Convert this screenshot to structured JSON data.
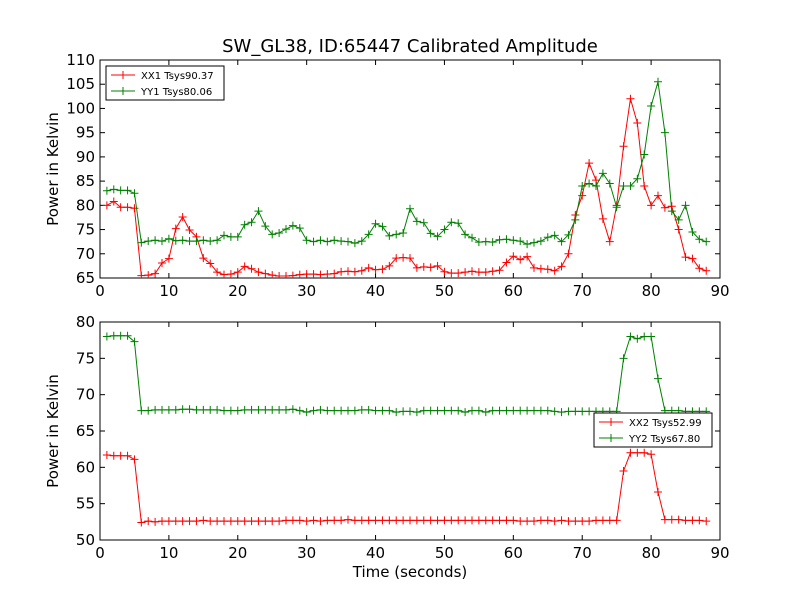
{
  "chart_data": [
    {
      "type": "line",
      "title": "SW_GL38, ID:65447 Calibrated Amplitude",
      "xlabel": "",
      "ylabel": "Power in Kelvin",
      "xlim": [
        0,
        90
      ],
      "ylim": [
        65,
        110
      ],
      "xticks": [
        "0",
        "10",
        "20",
        "30",
        "40",
        "50",
        "60",
        "70",
        "80",
        "90"
      ],
      "yticks": [
        "65",
        "70",
        "75",
        "80",
        "85",
        "90",
        "95",
        "100",
        "105",
        "110"
      ],
      "legend_position": "top-left",
      "x": [
        1,
        2,
        3,
        4,
        5,
        6,
        7,
        8,
        9,
        10,
        11,
        12,
        13,
        14,
        15,
        16,
        17,
        18,
        19,
        20,
        21,
        22,
        23,
        24,
        25,
        26,
        27,
        28,
        29,
        30,
        31,
        32,
        33,
        34,
        35,
        36,
        37,
        38,
        39,
        40,
        41,
        42,
        43,
        44,
        45,
        46,
        47,
        48,
        49,
        50,
        51,
        52,
        53,
        54,
        55,
        56,
        57,
        58,
        59,
        60,
        61,
        62,
        63,
        64,
        65,
        66,
        67,
        68,
        69,
        70,
        71,
        72,
        73,
        74,
        75,
        76,
        77,
        78,
        79,
        80,
        81,
        82,
        83,
        84,
        85,
        86,
        87,
        88
      ],
      "series": [
        {
          "name": "XX1 Tsys90.37",
          "color": "#ff0000",
          "values": [
            80.0,
            80.8,
            79.6,
            79.6,
            79.4,
            65.5,
            65.6,
            65.9,
            68.1,
            69.0,
            75.2,
            77.6,
            74.9,
            73.5,
            69.1,
            68.0,
            66.2,
            65.7,
            65.8,
            66.2,
            67.4,
            66.9,
            66.2,
            65.9,
            65.6,
            65.4,
            65.4,
            65.5,
            65.7,
            65.8,
            65.8,
            65.7,
            65.8,
            65.9,
            66.3,
            66.4,
            66.3,
            66.5,
            67.1,
            66.7,
            66.8,
            67.5,
            69.1,
            69.2,
            69.1,
            67.1,
            67.3,
            67.2,
            67.5,
            66.3,
            66.0,
            66.0,
            66.2,
            66.4,
            66.2,
            66.2,
            66.4,
            66.6,
            68.2,
            69.5,
            68.8,
            69.4,
            67.1,
            66.9,
            66.8,
            66.5,
            67.4,
            70.0,
            78.0,
            82.0,
            88.7,
            85.2,
            77.2,
            72.5,
            80.0,
            92.2,
            102.0,
            97.0,
            84.0,
            80.0,
            82.0,
            79.5,
            79.8,
            75.0,
            69.3,
            69.0,
            67.0,
            66.5
          ]
        },
        {
          "name": "YY1 Tsys80.06",
          "color": "#008000",
          "values": [
            83.0,
            83.3,
            83.1,
            83.1,
            82.5,
            72.3,
            72.6,
            72.8,
            72.6,
            73.1,
            72.7,
            72.8,
            72.6,
            72.6,
            72.8,
            72.6,
            72.8,
            73.8,
            73.5,
            73.5,
            76.0,
            76.5,
            78.8,
            75.7,
            74.0,
            74.3,
            75.1,
            75.8,
            75.3,
            72.8,
            72.5,
            72.8,
            72.5,
            72.8,
            72.6,
            72.5,
            72.2,
            72.6,
            74.0,
            76.2,
            75.6,
            73.7,
            74.0,
            74.3,
            79.3,
            76.7,
            76.4,
            74.2,
            73.6,
            75.0,
            76.5,
            76.3,
            74.0,
            73.3,
            72.4,
            72.5,
            72.4,
            72.9,
            73.0,
            72.8,
            72.6,
            72.0,
            72.3,
            72.6,
            73.4,
            73.8,
            72.5,
            73.9,
            77.0,
            84.0,
            84.5,
            84.0,
            86.6,
            84.5,
            79.6,
            84.0,
            84.0,
            85.5,
            90.5,
            100.5,
            105.5,
            95.0,
            78.8,
            77.0,
            80.0,
            74.5,
            73.0,
            72.5
          ]
        }
      ]
    },
    {
      "type": "line",
      "title": "",
      "xlabel": "Time (seconds)",
      "ylabel": "Power in Kelvin",
      "xlim": [
        0,
        90
      ],
      "ylim": [
        50,
        80
      ],
      "xticks": [
        "0",
        "10",
        "20",
        "30",
        "40",
        "50",
        "60",
        "70",
        "80",
        "90"
      ],
      "yticks": [
        "50",
        "55",
        "60",
        "65",
        "70",
        "75",
        "80"
      ],
      "legend_position": "center-right",
      "x": [
        1,
        2,
        3,
        4,
        5,
        6,
        7,
        8,
        9,
        10,
        11,
        12,
        13,
        14,
        15,
        16,
        17,
        18,
        19,
        20,
        21,
        22,
        23,
        24,
        25,
        26,
        27,
        28,
        29,
        30,
        31,
        32,
        33,
        34,
        35,
        36,
        37,
        38,
        39,
        40,
        41,
        42,
        43,
        44,
        45,
        46,
        47,
        48,
        49,
        50,
        51,
        52,
        53,
        54,
        55,
        56,
        57,
        58,
        59,
        60,
        61,
        62,
        63,
        64,
        65,
        66,
        67,
        68,
        69,
        70,
        71,
        72,
        73,
        74,
        75,
        76,
        77,
        78,
        79,
        80,
        81,
        82,
        83,
        84,
        85,
        86,
        87,
        88
      ],
      "series": [
        {
          "name": "XX2 Tsys52.99",
          "color": "#ff0000",
          "values": [
            61.7,
            61.6,
            61.6,
            61.6,
            61.1,
            52.4,
            52.6,
            52.5,
            52.6,
            52.6,
            52.6,
            52.6,
            52.6,
            52.6,
            52.7,
            52.6,
            52.6,
            52.6,
            52.6,
            52.6,
            52.6,
            52.6,
            52.6,
            52.6,
            52.6,
            52.6,
            52.7,
            52.7,
            52.7,
            52.6,
            52.7,
            52.6,
            52.7,
            52.7,
            52.7,
            52.8,
            52.7,
            52.7,
            52.7,
            52.7,
            52.7,
            52.7,
            52.7,
            52.7,
            52.7,
            52.7,
            52.7,
            52.7,
            52.7,
            52.7,
            52.7,
            52.7,
            52.7,
            52.7,
            52.7,
            52.7,
            52.7,
            52.7,
            52.7,
            52.7,
            52.6,
            52.6,
            52.6,
            52.7,
            52.7,
            52.6,
            52.7,
            52.6,
            52.6,
            52.6,
            52.6,
            52.7,
            52.7,
            52.7,
            52.7,
            59.5,
            62.0,
            62.0,
            62.0,
            61.8,
            56.6,
            52.8,
            52.8,
            52.8,
            52.7,
            52.7,
            52.7,
            52.6
          ]
        },
        {
          "name": "YY2 Tsys67.80",
          "color": "#008000",
          "values": [
            78.0,
            78.1,
            78.1,
            78.1,
            77.3,
            67.8,
            67.8,
            67.9,
            67.9,
            67.9,
            67.9,
            68.0,
            68.0,
            67.9,
            67.9,
            67.9,
            67.9,
            67.8,
            67.8,
            67.8,
            67.9,
            67.9,
            67.9,
            67.9,
            67.9,
            67.9,
            67.9,
            68.0,
            67.8,
            67.6,
            67.8,
            67.9,
            67.8,
            67.8,
            67.8,
            67.8,
            67.8,
            67.9,
            67.9,
            67.8,
            67.8,
            67.8,
            67.6,
            67.7,
            67.7,
            67.6,
            67.8,
            67.8,
            67.8,
            67.8,
            67.8,
            67.8,
            67.6,
            67.8,
            67.8,
            67.6,
            67.8,
            67.8,
            67.8,
            67.8,
            67.8,
            67.8,
            67.8,
            67.8,
            67.8,
            67.7,
            67.6,
            67.7,
            67.7,
            67.7,
            67.7,
            67.7,
            67.7,
            67.7,
            67.7,
            75.0,
            78.0,
            77.7,
            78.0,
            78.0,
            72.2,
            67.8,
            67.8,
            67.8,
            67.7,
            67.7,
            67.7,
            67.7
          ]
        }
      ]
    }
  ]
}
